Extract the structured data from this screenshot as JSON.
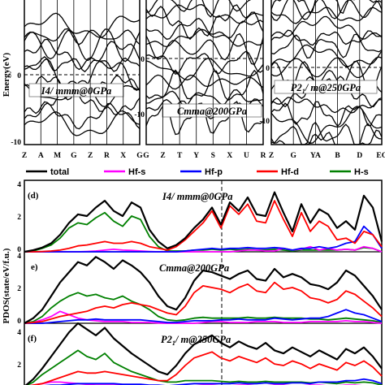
{
  "chart_data": [
    {
      "type": "line",
      "panel": "band-I4mmm",
      "title": "I4/ mmm@0GPa",
      "ylabel": "Energy(eV)",
      "ylim": [
        -12,
        10
      ],
      "yticks": [
        0,
        -10
      ],
      "xticks": [
        "Z",
        "A",
        "M",
        "G",
        "Z",
        "R",
        "X",
        "G"
      ],
      "fermi_level": 0
    },
    {
      "type": "line",
      "panel": "band-Cmma",
      "title": "Cmma@200GPa",
      "ylim": [
        -16,
        10
      ],
      "yticks": [
        0,
        -10
      ],
      "xticks": [
        "G",
        "Z",
        "T",
        "Y",
        "S",
        "X",
        "U",
        "R"
      ],
      "fermi_level": 0
    },
    {
      "type": "line",
      "panel": "band-P21m",
      "title": "P21/ m@250GPa",
      "ylim": [
        -16,
        10
      ],
      "yticks": [
        0,
        -10
      ],
      "xticks": [
        "Z",
        "G",
        "YA",
        "B",
        "D",
        "EC"
      ],
      "fermi_level": 0
    },
    {
      "type": "line",
      "panel": "pdos",
      "ylabel": "PDOS(state/eV/f.u.)",
      "legend_position": "top",
      "legend": [
        {
          "name": "total",
          "color": "#000000"
        },
        {
          "name": "Hf-s",
          "color": "#ff00ff"
        },
        {
          "name": "Hf-p",
          "color": "#0000ff"
        },
        {
          "name": "Hf-d",
          "color": "#ff0000"
        },
        {
          "name": "H-s",
          "color": "#008000"
        }
      ],
      "x_range": [
        -10,
        10
      ],
      "fermi_level": 0,
      "subpanels": [
        {
          "label": "(d)",
          "title": "I4/ mmm@0GPa",
          "ylim": [
            0,
            4.2
          ],
          "yticks": [
            0,
            2,
            4
          ],
          "series": [
            {
              "name": "total",
              "y": [
                0,
                0.1,
                0.25,
                0.5,
                1,
                1.7,
                2.2,
                2.1,
                2.6,
                3,
                2.4,
                2.1,
                2.9,
                2.6,
                1.3,
                0.6,
                0.2,
                0.4,
                0.8,
                1.4,
                1.9,
                2.6,
                1.6,
                2.9,
                2.4,
                3.2,
                2.2,
                2.1,
                3.5,
                2.3,
                1.2,
                2.8,
                1.7,
                2.5,
                2.2,
                1.4,
                1.8,
                1.3,
                3.3,
                2.6,
                0.6
              ]
            },
            {
              "name": "Hf-s",
              "y": [
                0,
                0,
                0,
                0,
                0,
                0,
                0,
                0.02,
                0.05,
                0.1,
                0.15,
                0.1,
                0.08,
                0.05,
                0.02,
                0,
                0,
                0,
                0,
                0,
                0,
                0,
                0,
                0,
                0.05,
                0.1,
                0.1,
                0.05,
                0.05,
                0.2,
                0.1,
                0.15,
                0.3,
                0.1,
                0.2,
                0.1,
                0.15,
                0.1,
                0.3,
                0.2,
                0
              ]
            },
            {
              "name": "Hf-p",
              "y": [
                0,
                0,
                0,
                0,
                0,
                0,
                0,
                0,
                0,
                0,
                0,
                0,
                0,
                0,
                0,
                0,
                0,
                0,
                0.05,
                0.1,
                0.15,
                0.2,
                0.15,
                0.2,
                0.2,
                0.25,
                0.2,
                0.2,
                0.25,
                0.2,
                0.1,
                0.2,
                0.2,
                0.3,
                0.2,
                0.3,
                0.5,
                0.6,
                1.5,
                1,
                0.2
              ]
            },
            {
              "name": "Hf-d",
              "y": [
                0,
                0,
                0.02,
                0.05,
                0.1,
                0.2,
                0.35,
                0.4,
                0.5,
                0.6,
                0.5,
                0.5,
                0.6,
                0.5,
                0.3,
                0.2,
                0.1,
                0.3,
                0.7,
                1.2,
                1.7,
                2.4,
                1.4,
                2.7,
                2.2,
                2.8,
                1.8,
                1.7,
                3,
                1.9,
                0.9,
                2.3,
                1.2,
                1.8,
                1.5,
                0.7,
                0.8,
                0.5,
                1.2,
                1,
                0.3
              ]
            },
            {
              "name": "H-s",
              "y": [
                0,
                0.05,
                0.2,
                0.4,
                0.8,
                1.4,
                1.7,
                1.6,
                2,
                2.3,
                1.8,
                1.5,
                2.1,
                1.9,
                0.9,
                0.3,
                0.05,
                0.05,
                0.05,
                0.1,
                0.1,
                0.15,
                0.1,
                0.15,
                0.1,
                0.15,
                0.1,
                0.1,
                0.15,
                0.1,
                0.05,
                0.1,
                0.1,
                0.1,
                0.1,
                0.1,
                0.15,
                0.1,
                0.25,
                0.2,
                0
              ]
            }
          ]
        },
        {
          "label": "e)",
          "title": "Cmma@200GPa",
          "ylim": [
            0,
            4.2
          ],
          "yticks": [
            0,
            2,
            4
          ],
          "series": [
            {
              "name": "total",
              "y": [
                0,
                0.3,
                0.8,
                1.6,
                2.4,
                3,
                3.6,
                3.4,
                3.9,
                3.6,
                3.2,
                3.7,
                3.4,
                3,
                2.4,
                1.6,
                1,
                0.8,
                1.5,
                2.5,
                3.1,
                3,
                2.8,
                2.6,
                2.9,
                3.1,
                2.6,
                2.5,
                3.2,
                2.7,
                2.9,
                2.7,
                2.3,
                2.2,
                2,
                2.4,
                3.1,
                2.8,
                2.2,
                1.6,
                0.8
              ]
            },
            {
              "name": "Hf-s",
              "y": [
                0,
                0.05,
                0.2,
                0.4,
                0.7,
                0.5,
                0.3,
                0.2,
                0.15,
                0.1,
                0.1,
                0.1,
                0.05,
                0.05,
                0.05,
                0.02,
                0,
                0,
                0,
                0,
                0.05,
                0.1,
                0.1,
                0.05,
                0.05,
                0.05,
                0.1,
                0.1,
                0.1,
                0.05,
                0.05,
                0.05,
                0.1,
                0.1,
                0.1,
                0.1,
                0.15,
                0.1,
                0.1,
                0.05,
                0
              ]
            },
            {
              "name": "Hf-p",
              "y": [
                0,
                0,
                0,
                0.05,
                0.1,
                0.15,
                0.2,
                0.2,
                0.25,
                0.2,
                0.2,
                0.2,
                0.2,
                0.2,
                0.15,
                0.1,
                0.05,
                0.05,
                0.1,
                0.15,
                0.15,
                0.15,
                0.2,
                0.2,
                0.25,
                0.2,
                0.2,
                0.2,
                0.3,
                0.25,
                0.2,
                0.25,
                0.3,
                0.3,
                0.4,
                0.6,
                0.8,
                0.6,
                0.5,
                0.3,
                0.1
              ]
            },
            {
              "name": "Hf-d",
              "y": [
                0,
                0.05,
                0.1,
                0.25,
                0.4,
                0.5,
                0.6,
                0.7,
                0.9,
                1,
                0.9,
                1.1,
                1.2,
                1.1,
                1,
                0.8,
                0.6,
                0.5,
                1,
                1.8,
                2.2,
                2.1,
                2,
                1.8,
                2.1,
                2.3,
                1.9,
                1.8,
                2.4,
                2,
                2.1,
                1.9,
                1.5,
                1.4,
                1.2,
                1.4,
                1.9,
                1.7,
                1.3,
                0.9,
                0.4
              ]
            },
            {
              "name": "H-s",
              "y": [
                0,
                0.1,
                0.4,
                0.9,
                1.3,
                1.6,
                1.8,
                1.6,
                1.7,
                1.5,
                1.4,
                1.6,
                1.3,
                1.1,
                0.8,
                0.4,
                0.2,
                0.15,
                0.2,
                0.3,
                0.35,
                0.3,
                0.3,
                0.3,
                0.3,
                0.35,
                0.3,
                0.3,
                0.35,
                0.3,
                0.3,
                0.3,
                0.25,
                0.25,
                0.2,
                0.25,
                0.3,
                0.25,
                0.2,
                0.15,
                0.05
              ]
            }
          ]
        },
        {
          "label": "(f)",
          "title": "P21/ m@250GPa",
          "ylim": [
            0,
            4.2
          ],
          "yticks": [
            2,
            4
          ],
          "series": [
            {
              "name": "total",
              "y": [
                0,
                0.5,
                1.2,
                2,
                2.8,
                3.6,
                4.5,
                3.8,
                3.4,
                3.9,
                3.2,
                2.7,
                2.2,
                1.8,
                1.4,
                1,
                0.8,
                1.4,
                2.2,
                2.8,
                3.1,
                3.4,
                2.9,
                2.6,
                3,
                2.7,
                2.5,
                2.9,
                2.4,
                2.2,
                2.6,
                2.3,
                2,
                2.4,
                2.1,
                1.8,
                2.5,
                2.2,
                2.6,
                2,
                1.2
              ]
            },
            {
              "name": "Hf-s",
              "y": [
                0,
                0.1,
                0.2,
                0.3,
                0.3,
                0.25,
                0.2,
                0.15,
                0.1,
                0.1,
                0.1,
                0.1,
                0.05,
                0.05,
                0.05,
                0.02,
                0,
                0,
                0.05,
                0.05,
                0.1,
                0.1,
                0.05,
                0.05,
                0.1,
                0.1,
                0.05,
                0.05,
                0.1,
                0.1,
                0.05,
                0.05,
                0.1,
                0.1,
                0.05,
                0.05,
                0.1,
                0.1,
                0.05,
                0.05,
                0
              ]
            },
            {
              "name": "Hf-p",
              "y": [
                0,
                0,
                0.05,
                0.1,
                0.1,
                0.15,
                0.2,
                0.2,
                0.2,
                0.2,
                0.2,
                0.15,
                0.15,
                0.15,
                0.1,
                0.1,
                0.05,
                0.1,
                0.15,
                0.2,
                0.2,
                0.2,
                0.2,
                0.2,
                0.25,
                0.2,
                0.2,
                0.25,
                0.2,
                0.2,
                0.25,
                0.25,
                0.2,
                0.3,
                0.3,
                0.3,
                0.4,
                0.4,
                0.5,
                0.4,
                0.2
              ]
            },
            {
              "name": "Hf-d",
              "y": [
                0,
                0.1,
                0.2,
                0.4,
                0.6,
                0.8,
                1,
                0.9,
                0.9,
                1,
                0.9,
                0.8,
                0.7,
                0.6,
                0.5,
                0.4,
                0.4,
                0.8,
                1.4,
                1.9,
                2.1,
                2.3,
                1.9,
                1.7,
                2,
                1.8,
                1.6,
                1.9,
                1.5,
                1.4,
                1.7,
                1.5,
                1.2,
                1.5,
                1.3,
                1.1,
                1.6,
                1.4,
                1.7,
                1.3,
                0.7
              ]
            },
            {
              "name": "H-s",
              "y": [
                0,
                0.3,
                0.8,
                1.2,
                1.6,
                2,
                2.4,
                2,
                1.8,
                2.2,
                1.6,
                1.3,
                1,
                0.8,
                0.6,
                0.4,
                0.3,
                0.3,
                0.4,
                0.4,
                0.4,
                0.4,
                0.35,
                0.3,
                0.35,
                0.3,
                0.3,
                0.35,
                0.3,
                0.3,
                0.3,
                0.3,
                0.25,
                0.3,
                0.25,
                0.2,
                0.3,
                0.25,
                0.3,
                0.25,
                0.1
              ]
            }
          ]
        }
      ]
    }
  ]
}
